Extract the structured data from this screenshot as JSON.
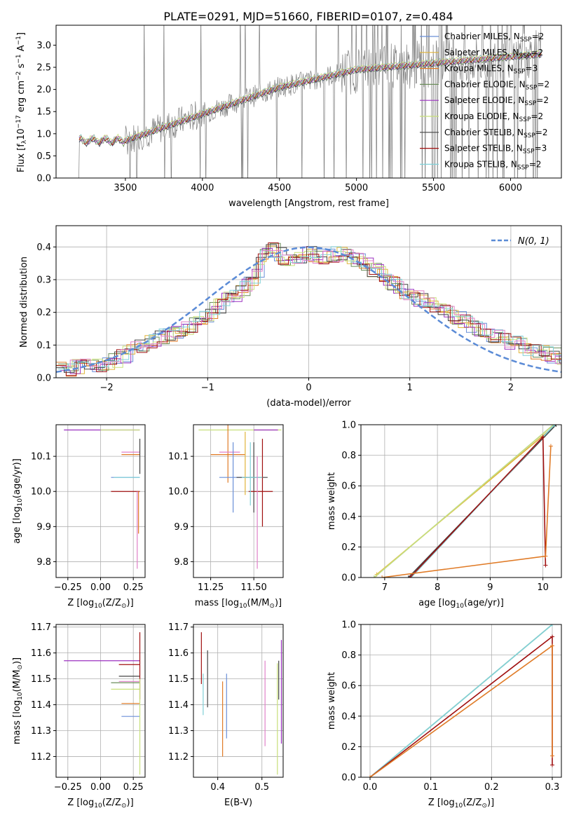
{
  "figure_title": "PLATE=0291, MJD=51660, FIBERID=0107, z=0.484",
  "palette": {
    "Chabrier MILES": "#6a8fd8",
    "Salpeter MILES": "#e0b43a",
    "Kroupa MILES": "#e07b27",
    "Chabrier ELODIE": "#6b8e5a",
    "Salpeter ELODIE": "#9b30c0",
    "Kroupa ELODIE": "#c8e07a",
    "Chabrier STELIB": "#444444",
    "Salpeter STELIB": "#a01010",
    "Kroupa STELIB": "#7fd0d8",
    "observed": "#808080",
    "pink": "#e080c8",
    "normal": "#5b8bd6"
  },
  "chart_data": [
    {
      "id": "spectrum",
      "type": "line",
      "xlabel": "wavelength [Angstrom, rest frame]",
      "ylabel_pre": "Flux [f",
      "ylabel_sub": "λ",
      "ylabel_mid": "10",
      "ylabel_sup1": "−17",
      "ylabel_post1": " erg cm",
      "ylabel_sup2": "−2",
      "ylabel_post2": " s",
      "ylabel_sup3": "−1",
      "ylabel_post3": " A",
      "ylabel_sup4": "−1",
      "ylabel_end": "]",
      "xlim": [
        3050,
        6330
      ],
      "ylim": [
        0,
        3.45
      ],
      "xticks": [
        3500,
        4000,
        4500,
        5000,
        5500,
        6000
      ],
      "yticks": [
        0.0,
        0.5,
        1.0,
        1.5,
        2.0,
        2.5,
        3.0
      ],
      "legend_position": "top-right",
      "legend": [
        {
          "label": "Chabrier MILES, N",
          "sub": "SSP",
          "suffix": "=2",
          "color": "#6a8fd8"
        },
        {
          "label": "Salpeter MILES, N",
          "sub": "SSP",
          "suffix": "=2",
          "color": "#e0b43a"
        },
        {
          "label": "Kroupa MILES, N",
          "sub": "SSP",
          "suffix": "=3",
          "color": "#e07b27"
        },
        {
          "label": "Chabrier ELODIE, N",
          "sub": "SSP",
          "suffix": "=2",
          "color": "#6b8e5a"
        },
        {
          "label": "Salpeter ELODIE, N",
          "sub": "SSP",
          "suffix": "=2",
          "color": "#9b30c0"
        },
        {
          "label": "Kroupa ELODIE, N",
          "sub": "SSP",
          "suffix": "=2",
          "color": "#c8e07a"
        },
        {
          "label": "Chabrier STELIB, N",
          "sub": "SSP",
          "suffix": "=2",
          "color": "#444444"
        },
        {
          "label": "Salpeter STELIB, N",
          "sub": "SSP",
          "suffix": "=3",
          "color": "#a01010"
        },
        {
          "label": "Kroupa STELIB, N",
          "sub": "SSP",
          "suffix": "=2",
          "color": "#7fd0d8"
        }
      ]
    },
    {
      "id": "residuals",
      "type": "histogram",
      "xlabel": "(data-model)/error",
      "ylabel": "Normed distribution",
      "xlim": [
        -2.5,
        2.5
      ],
      "ylim": [
        0,
        0.465
      ],
      "xticks": [
        -2,
        -1,
        0,
        1,
        2
      ],
      "yticks": [
        0.0,
        0.1,
        0.2,
        0.3,
        0.4
      ],
      "grid": true,
      "legend_position": "top-right",
      "legend_label": "N(0, 1)",
      "bin_width": 0.1,
      "series_colors": [
        "#6a8fd8",
        "#e0b43a",
        "#e07b27",
        "#6b8e5a",
        "#9b30c0",
        "#c8e07a",
        "#444444",
        "#a01010",
        "#7fd0d8",
        "#e080c8"
      ],
      "envelope": {
        "x": [
          -2.5,
          -2.0,
          -1.8,
          -1.5,
          -1.2,
          -1.0,
          -0.8,
          -0.6,
          -0.5,
          -0.4,
          -0.2,
          0.0,
          0.15,
          0.3,
          0.5,
          0.7,
          0.9,
          1.1,
          1.3,
          1.5,
          1.7,
          1.9,
          2.1,
          2.3,
          2.5
        ],
        "y": [
          0.025,
          0.04,
          0.07,
          0.12,
          0.15,
          0.19,
          0.24,
          0.28,
          0.32,
          0.4,
          0.36,
          0.38,
          0.37,
          0.38,
          0.36,
          0.32,
          0.27,
          0.24,
          0.22,
          0.18,
          0.15,
          0.12,
          0.1,
          0.075,
          0.065
        ]
      }
    },
    {
      "id": "age_vs_Z",
      "type": "errorbar",
      "xlabel_pre": "Z [log",
      "xlabel_sub": "10",
      "xlabel_post": "(Z/Z",
      "xlabel_sub2": "⊙",
      "xlabel_end": ")]",
      "ylabel_pre": "age  [log",
      "ylabel_sub": "10",
      "ylabel_post": "(age/yr)]",
      "xlim": [
        -0.34,
        0.34
      ],
      "ylim": [
        9.755,
        10.19
      ],
      "xticks": [
        -0.25,
        0.0,
        0.25
      ],
      "xticklabels": [
        "−0.25",
        "0.00",
        "0.25"
      ],
      "yticks": [
        9.8,
        9.9,
        10.0,
        10.1
      ],
      "grid": true,
      "points": [
        {
          "x": 0.3,
          "y": 10.175,
          "xerr": [
            0.58,
            0.0
          ],
          "yerr": [
            0.0,
            0.0
          ],
          "color": "#9b30c0"
        },
        {
          "x": 0.3,
          "y": 10.175,
          "xerr": [
            0.3,
            0.0
          ],
          "yerr": [
            0.0,
            0.0
          ],
          "color": "#c8e07a"
        },
        {
          "x": 0.3,
          "y": 10.112,
          "xerr": [
            0.14,
            0.0
          ],
          "yerr": [
            0.0,
            0.0
          ],
          "color": "#e080c8"
        },
        {
          "x": 0.3,
          "y": 10.105,
          "xerr": [
            0.14,
            0.0
          ],
          "yerr": [
            0.0,
            0.0
          ],
          "color": "#e07b27"
        },
        {
          "x": 0.3,
          "y": 10.04,
          "xerr": [
            0.22,
            0.0
          ],
          "yerr": [
            0.0,
            0.0
          ],
          "color": "#6a8fd8"
        },
        {
          "x": 0.3,
          "y": 10.04,
          "xerr": [
            0.2,
            0.0
          ],
          "yerr": [
            0.0,
            0.0
          ],
          "color": "#7fd0d8"
        },
        {
          "x": 0.3,
          "y": 10.0,
          "xerr": [
            0.22,
            0.0
          ],
          "yerr": [
            0.0,
            0.0
          ],
          "color": "#a01010"
        },
        {
          "x": 0.3,
          "y": 10.15,
          "xerr": [
            0.0,
            0.0
          ],
          "yerr": [
            0.1,
            0.0
          ],
          "color": "#444444"
        },
        {
          "x": 0.29,
          "y": 10.0,
          "xerr": [
            0.0,
            0.0
          ],
          "yerr": [
            0.12,
            0.0
          ],
          "color": "#e07b27"
        },
        {
          "x": 0.28,
          "y": 10.0,
          "xerr": [
            0.0,
            0.0
          ],
          "yerr": [
            0.22,
            0.0
          ],
          "color": "#e080c8"
        }
      ]
    },
    {
      "id": "age_vs_mass",
      "type": "errorbar",
      "xlabel_pre": "mass [log",
      "xlabel_sub": "10",
      "xlabel_post": "(M/M",
      "xlabel_sub2": "⊙",
      "xlabel_end": ")]",
      "xlim": [
        11.15,
        11.67
      ],
      "ylim": [
        9.755,
        10.19
      ],
      "xticks": [
        11.25,
        11.5
      ],
      "xticklabels": [
        "11.25",
        "11.50"
      ],
      "yticks": [
        9.8,
        9.9,
        10.0,
        10.1
      ],
      "grid": true,
      "points": [
        {
          "x": 11.42,
          "y": 10.175,
          "xerr": [
            0.24,
            0.24
          ],
          "yerr": [
            0,
            0
          ],
          "color": "#c8e07a"
        },
        {
          "x": 11.57,
          "y": 10.175,
          "xerr": [
            0.07,
            0.07
          ],
          "yerr": [
            0,
            0
          ],
          "color": "#9b30c0"
        },
        {
          "x": 11.35,
          "y": 10.105,
          "xerr": [
            0.1,
            0.1
          ],
          "yerr": [
            0.08,
            0.1
          ],
          "color": "#e07b27"
        },
        {
          "x": 11.36,
          "y": 10.112,
          "xerr": [
            0.06,
            0.06
          ],
          "yerr": [
            0,
            0
          ],
          "color": "#e080c8"
        },
        {
          "x": 11.38,
          "y": 10.04,
          "xerr": [
            0.08,
            0.08
          ],
          "yerr": [
            0.1,
            0.1
          ],
          "color": "#6a8fd8"
        },
        {
          "x": 11.5,
          "y": 10.04,
          "xerr": [
            0.1,
            0.08
          ],
          "yerr": [
            0.1,
            0.1
          ],
          "color": "#444444"
        },
        {
          "x": 11.55,
          "y": 10.0,
          "xerr": [
            0.08,
            0.06
          ],
          "yerr": [
            0.1,
            0.15
          ],
          "color": "#a01010"
        },
        {
          "x": 11.45,
          "y": 10.07,
          "xerr": [
            0,
            0
          ],
          "yerr": [
            0.08,
            0.1
          ],
          "color": "#e0b43a"
        },
        {
          "x": 11.48,
          "y": 10.04,
          "xerr": [
            0.05,
            0.07
          ],
          "yerr": [
            0.08,
            0.1
          ],
          "color": "#7fd0d8"
        },
        {
          "x": 11.52,
          "y": 10.0,
          "xerr": [
            0,
            0
          ],
          "yerr": [
            0.22,
            0.1
          ],
          "color": "#e080c8"
        }
      ]
    },
    {
      "id": "mass_weight_vs_age",
      "type": "line",
      "xlabel_pre": "age  [log",
      "xlabel_sub": "10",
      "xlabel_post": "(age/yr)]",
      "ylabel": "mass weight",
      "xlim": [
        6.55,
        10.35
      ],
      "ylim": [
        0.0,
        1.0
      ],
      "xticks": [
        7,
        8,
        9,
        10
      ],
      "yticks": [
        0.0,
        0.2,
        0.4,
        0.6,
        0.8,
        1.0
      ],
      "grid": true,
      "series": [
        {
          "x": [
            6.8,
            10.2
          ],
          "y": [
            0.0,
            1.0
          ],
          "color": "#6a8fd8"
        },
        {
          "x": [
            6.85,
            10.25
          ],
          "y": [
            0.02,
            1.0
          ],
          "color": "#e0b43a"
        },
        {
          "x": [
            6.8,
            10.2
          ],
          "y": [
            0.0,
            1.0
          ],
          "color": "#c8e07a"
        },
        {
          "x": [
            7.45,
            10.25
          ],
          "y": [
            0.0,
            1.0
          ],
          "color": "#444444"
        },
        {
          "x": [
            7.5,
            10.22
          ],
          "y": [
            0.0,
            1.0
          ],
          "color": "#7fd0d8"
        },
        {
          "x": [
            7.48,
            10.0,
            10.05
          ],
          "y": [
            0.0,
            0.92,
            0.08
          ],
          "color": "#a01010"
        },
        {
          "x": [
            6.95,
            10.05,
            10.15
          ],
          "y": [
            0.0,
            0.14,
            0.86
          ],
          "color": "#e07b27"
        }
      ]
    },
    {
      "id": "mass_vs_Z",
      "type": "errorbar",
      "xlabel_pre": "Z [log",
      "xlabel_sub": "10",
      "xlabel_post": "(Z/Z",
      "xlabel_sub2": "⊙",
      "xlabel_end": ")]",
      "ylabel_pre": "mass [log",
      "ylabel_sub": "10",
      "ylabel_post": "(M/M",
      "ylabel_sub2": "⊙",
      "ylabel_end": ")]",
      "xlim": [
        -0.34,
        0.34
      ],
      "ylim": [
        11.12,
        11.71
      ],
      "xticks": [
        -0.25,
        0.0,
        0.25
      ],
      "xticklabels": [
        "−0.25",
        "0.00",
        "0.25"
      ],
      "yticks": [
        11.2,
        11.3,
        11.4,
        11.5,
        11.6,
        11.7
      ],
      "grid": true,
      "points": [
        {
          "x": 0.3,
          "y": 11.57,
          "xerr": [
            0.58,
            0
          ],
          "yerr": [
            0,
            0
          ],
          "color": "#9b30c0"
        },
        {
          "x": 0.3,
          "y": 11.555,
          "xerr": [
            0.16,
            0
          ],
          "yerr": [
            0,
            0
          ],
          "color": "#a01010"
        },
        {
          "x": 0.3,
          "y": 11.51,
          "xerr": [
            0.16,
            0
          ],
          "yerr": [
            0,
            0
          ],
          "color": "#444444"
        },
        {
          "x": 0.3,
          "y": 11.49,
          "xerr": [
            0.16,
            0
          ],
          "yerr": [
            0,
            0
          ],
          "color": "#e080c8"
        },
        {
          "x": 0.3,
          "y": 11.485,
          "xerr": [
            0.22,
            0
          ],
          "yerr": [
            0,
            0
          ],
          "color": "#6b8e5a"
        },
        {
          "x": 0.3,
          "y": 11.46,
          "xerr": [
            0.22,
            0
          ],
          "yerr": [
            0,
            0
          ],
          "color": "#c8e07a"
        },
        {
          "x": 0.3,
          "y": 11.405,
          "xerr": [
            0.14,
            0
          ],
          "yerr": [
            0,
            0
          ],
          "color": "#e07b27"
        },
        {
          "x": 0.3,
          "y": 11.355,
          "xerr": [
            0.14,
            0
          ],
          "yerr": [
            0,
            0
          ],
          "color": "#6a8fd8"
        },
        {
          "x": 0.3,
          "y": 11.5,
          "xerr": [
            0,
            0
          ],
          "yerr": [
            0.08,
            0.18
          ],
          "color": "#a01010"
        },
        {
          "x": 0.3,
          "y": 11.4,
          "xerr": [
            0,
            0
          ],
          "yerr": [
            0.27,
            0.1
          ],
          "color": "#c8e07a"
        }
      ]
    },
    {
      "id": "mass_vs_ebv",
      "type": "errorbar",
      "xlabel": "E(B-V)",
      "xlim": [
        0.345,
        0.548
      ],
      "ylim": [
        11.12,
        11.71
      ],
      "xticks": [
        0.4,
        0.5
      ],
      "xticklabels": [
        "0.4",
        "0.5"
      ],
      "yticks": [
        11.2,
        11.3,
        11.4,
        11.5,
        11.6,
        11.7
      ],
      "grid": true,
      "points": [
        {
          "x": 0.363,
          "y": 11.58,
          "xerr": [
            0,
            0
          ],
          "yerr": [
            0.1,
            0.1
          ],
          "color": "#a01010"
        },
        {
          "x": 0.367,
          "y": 11.45,
          "xerr": [
            0,
            0
          ],
          "yerr": [
            0.09,
            0.07
          ],
          "color": "#7fd0d8"
        },
        {
          "x": 0.377,
          "y": 11.5,
          "xerr": [
            0,
            0
          ],
          "yerr": [
            0.11,
            0.11
          ],
          "color": "#444444"
        },
        {
          "x": 0.411,
          "y": 11.34,
          "xerr": [
            0,
            0
          ],
          "yerr": [
            0.14,
            0.15
          ],
          "color": "#e07b27"
        },
        {
          "x": 0.42,
          "y": 11.39,
          "xerr": [
            0,
            0
          ],
          "yerr": [
            0.12,
            0.13
          ],
          "color": "#6a8fd8"
        },
        {
          "x": 0.507,
          "y": 11.4,
          "xerr": [
            0,
            0
          ],
          "yerr": [
            0.16,
            0.17
          ],
          "color": "#e080c8"
        },
        {
          "x": 0.535,
          "y": 11.37,
          "xerr": [
            0,
            0
          ],
          "yerr": [
            0.24,
            0.19
          ],
          "color": "#c8e07a"
        },
        {
          "x": 0.538,
          "y": 11.5,
          "xerr": [
            0,
            0
          ],
          "yerr": [
            0.08,
            0.07
          ],
          "color": "#444444"
        },
        {
          "x": 0.544,
          "y": 11.45,
          "xerr": [
            0,
            0
          ],
          "yerr": [
            0.2,
            0.2
          ],
          "color": "#9b30c0"
        }
      ]
    },
    {
      "id": "mass_weight_vs_Z",
      "type": "line",
      "xlabel_pre": "Z [log",
      "xlabel_sub": "10",
      "xlabel_post": "(Z/Z",
      "xlabel_sub2": "⊙",
      "xlabel_end": ")]",
      "ylabel": "mass weight",
      "xlim": [
        -0.015,
        0.315
      ],
      "ylim": [
        0.0,
        1.0
      ],
      "xticks": [
        0.0,
        0.1,
        0.2,
        0.3
      ],
      "xticklabels": [
        "0.0",
        "0.1",
        "0.2",
        "0.3"
      ],
      "yticks": [
        0.0,
        0.2,
        0.4,
        0.6,
        0.8,
        1.0
      ],
      "grid": true,
      "series": [
        {
          "x": [
            0.0,
            0.3
          ],
          "y": [
            0.0,
            1.0
          ],
          "color": "#6a8fd8"
        },
        {
          "x": [
            0.0,
            0.3
          ],
          "y": [
            0.0,
            1.0
          ],
          "color": "#c8e07a"
        },
        {
          "x": [
            0.0,
            0.3
          ],
          "y": [
            0.0,
            1.0
          ],
          "color": "#7fd0d8"
        },
        {
          "x": [
            0.0,
            0.3,
            0.3
          ],
          "y": [
            0.0,
            0.92,
            0.08
          ],
          "color": "#a01010"
        },
        {
          "x": [
            0.0,
            0.3,
            0.3
          ],
          "y": [
            0.0,
            0.86,
            0.14
          ],
          "color": "#e07b27"
        }
      ]
    }
  ]
}
